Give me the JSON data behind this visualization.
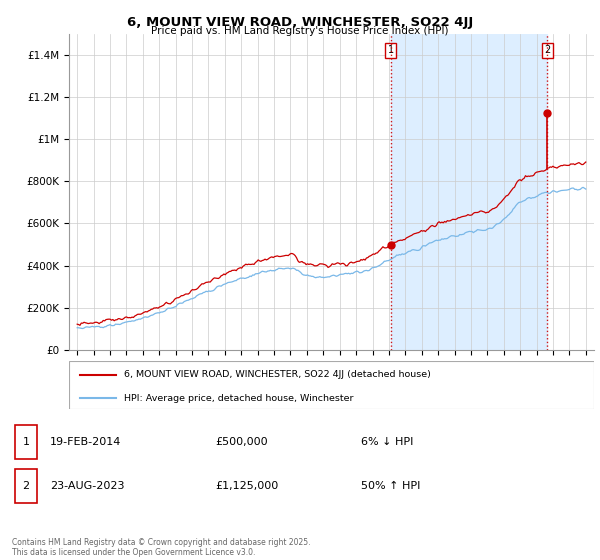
{
  "title": "6, MOUNT VIEW ROAD, WINCHESTER, SO22 4JJ",
  "subtitle": "Price paid vs. HM Land Registry's House Price Index (HPI)",
  "ylabel_ticks": [
    "£0",
    "£200K",
    "£400K",
    "£600K",
    "£800K",
    "£1M",
    "£1.2M",
    "£1.4M"
  ],
  "ytick_values": [
    0,
    200000,
    400000,
    600000,
    800000,
    1000000,
    1200000,
    1400000
  ],
  "ylim": [
    0,
    1500000
  ],
  "xlim_start": 1994.5,
  "xlim_end": 2026.5,
  "sale1_year": 2014.12,
  "sale1_price": 500000,
  "sale2_year": 2023.64,
  "sale2_price": 1125000,
  "sale1_label": "1",
  "sale2_label": "2",
  "hpi_color": "#7ab8e8",
  "price_color": "#cc0000",
  "vline_color": "#cc0000",
  "shade_color": "#ddeeff",
  "legend_label_price": "6, MOUNT VIEW ROAD, WINCHESTER, SO22 4JJ (detached house)",
  "legend_label_hpi": "HPI: Average price, detached house, Winchester",
  "annotation1_date": "19-FEB-2014",
  "annotation1_price": "£500,000",
  "annotation1_hpi": "6% ↓ HPI",
  "annotation2_date": "23-AUG-2023",
  "annotation2_price": "£1,125,000",
  "annotation2_hpi": "50% ↑ HPI",
  "footer": "Contains HM Land Registry data © Crown copyright and database right 2025.\nThis data is licensed under the Open Government Licence v3.0.",
  "background_color": "#ffffff",
  "grid_color": "#cccccc"
}
